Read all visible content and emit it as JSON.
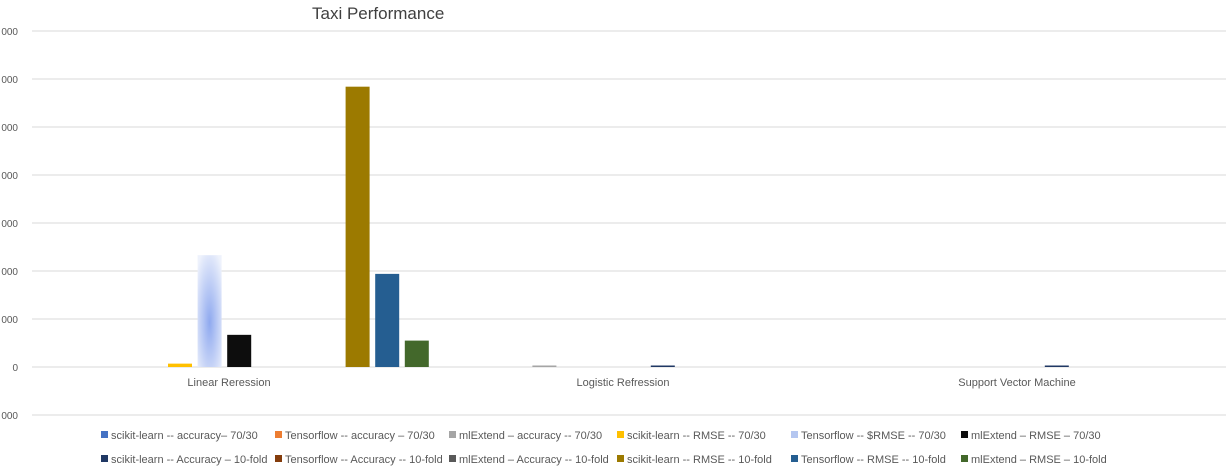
{
  "chart_data": {
    "type": "bar",
    "title": "Taxi Performance",
    "categories": [
      "Linear Reression",
      "Logistic Refression",
      "Support Vector Machine"
    ],
    "ylim": [
      -1,
      7
    ],
    "yticks": [
      -1,
      0,
      1,
      2,
      3,
      4,
      5,
      6,
      7
    ],
    "ytick_labels": [
      "000",
      "0",
      "000",
      "000",
      "000",
      "000",
      "000",
      "000",
      "000"
    ],
    "grid": true,
    "legend_position": "bottom",
    "series": [
      {
        "name": "scikit-learn -- accuracy– 70/30",
        "color": "#4472c4",
        "values": [
          0,
          0,
          0
        ]
      },
      {
        "name": "Tensorflow -- accuracy – 70/30",
        "color": "#ed7d31",
        "values": [
          0,
          0,
          0
        ]
      },
      {
        "name": "mlExtend – accuracy -- 70/30",
        "color": "#a5a5a5",
        "values": [
          0,
          0.03,
          0
        ]
      },
      {
        "name": "scikit-learn -- RMSE -- 70/30",
        "color": "#ffc000",
        "values": [
          0.07,
          0,
          0
        ]
      },
      {
        "name": "Tensorflow -- $RMSE -- 70/30",
        "color": "#b4c6f0",
        "values": [
          2.33,
          0,
          0
        ]
      },
      {
        "name": "mlExtend – RMSE – 70/30",
        "color": "#0d0d0d",
        "values": [
          0.67,
          0,
          0
        ]
      },
      {
        "name": "scikit-learn -- Accuracy – 10-fold",
        "color": "#203864",
        "values": [
          0,
          0.03,
          0.03
        ]
      },
      {
        "name": "Tensorflow -- Accuracy -- 10-fold",
        "color": "#843c0c",
        "values": [
          0,
          0,
          0
        ]
      },
      {
        "name": "mlExtend – Accuracy -- 10-fold",
        "color": "#595959",
        "values": [
          0,
          0,
          0
        ]
      },
      {
        "name": "scikit-learn -- RMSE -- 10-fold",
        "color": "#9c7a00",
        "values": [
          5.84,
          0,
          0
        ]
      },
      {
        "name": "Tensorflow -- RMSE -- 10-fold",
        "color": "#255e91",
        "values": [
          1.94,
          0,
          0
        ]
      },
      {
        "name": "mlExtend – RMSE – 10-fold",
        "color": "#43682b",
        "values": [
          0.55,
          0,
          0
        ]
      }
    ]
  }
}
